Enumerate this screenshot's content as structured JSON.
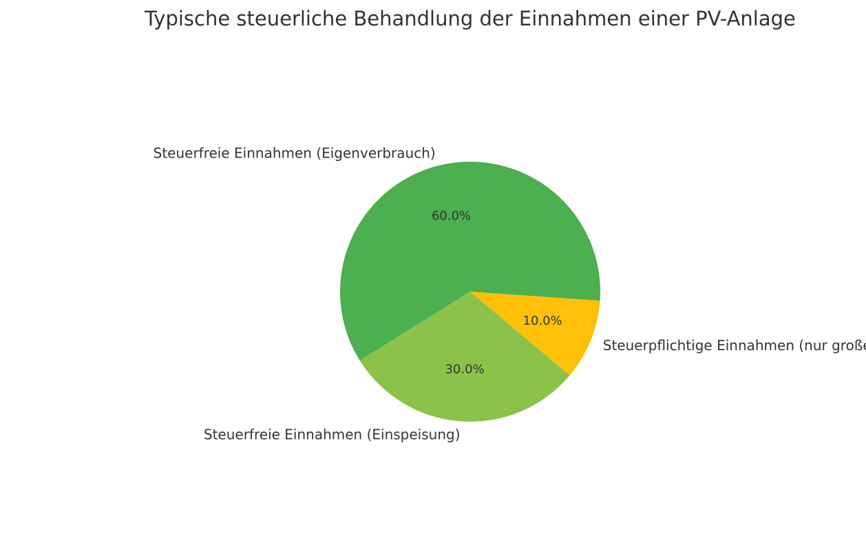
{
  "chart_data": {
    "type": "pie",
    "title": "Typische steuerliche Behandlung der Einnahmen einer PV-Anlage",
    "slices": [
      {
        "label": "Steuerfreie Einnahmen (Eigenverbrauch)",
        "value": 60.0,
        "pct_label": "60.0%",
        "color": "#4caf50"
      },
      {
        "label": "Steuerfreie Einnahmen (Einspeisung)",
        "value": 30.0,
        "pct_label": "30.0%",
        "color": "#8bc34a"
      },
      {
        "label": "Steuerpflichtige Einnahmen (nur große Anlagen)",
        "value": 10.0,
        "pct_label": "10.0%",
        "color": "#ffc107"
      }
    ],
    "legend": "none"
  }
}
